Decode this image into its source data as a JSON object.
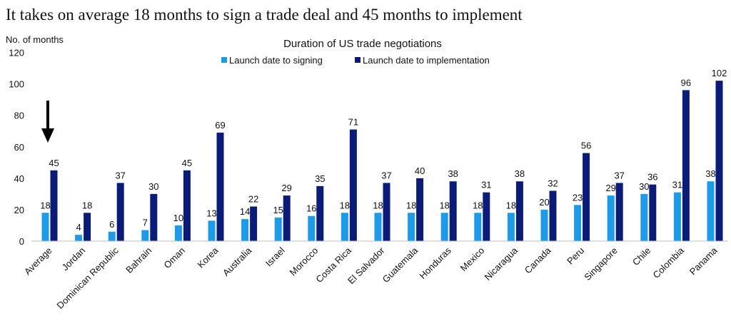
{
  "headline": "It takes on average 18 months to sign a trade deal and 45 months to implement",
  "chart_data": {
    "type": "bar",
    "title": "Duration of US trade negotiations",
    "ylabel": "No. of months",
    "xlabel": "",
    "ylim": [
      0,
      120
    ],
    "yticks": [
      0,
      20,
      40,
      60,
      80,
      100,
      120
    ],
    "grid": false,
    "legend_position": "top-center",
    "categories": [
      "Average",
      "Jordan",
      "Dominican Republic",
      "Bahrain",
      "Oman",
      "Korea",
      "Australia",
      "Israel",
      "Morocco",
      "Costa Rica",
      "El Salvador",
      "Guatemala",
      "Honduras",
      "Mexico",
      "Nicaragua",
      "Canada",
      "Peru",
      "Singapore",
      "Chile",
      "Colombia",
      "Panama"
    ],
    "series": [
      {
        "name": "Launch date to signing",
        "color": "#1e9be8",
        "values": [
          18,
          4,
          6,
          7,
          10,
          13,
          14,
          15,
          16,
          18,
          18,
          18,
          18,
          18,
          18,
          20,
          23,
          29,
          30,
          31,
          38
        ]
      },
      {
        "name": "Launch date to implementation",
        "color": "#0b1c78",
        "values": [
          45,
          18,
          37,
          30,
          45,
          69,
          22,
          29,
          35,
          71,
          37,
          40,
          38,
          31,
          38,
          32,
          56,
          37,
          36,
          96,
          102
        ]
      }
    ],
    "annotations": [
      {
        "type": "arrow",
        "target_category": "Average",
        "direction": "down"
      }
    ]
  }
}
